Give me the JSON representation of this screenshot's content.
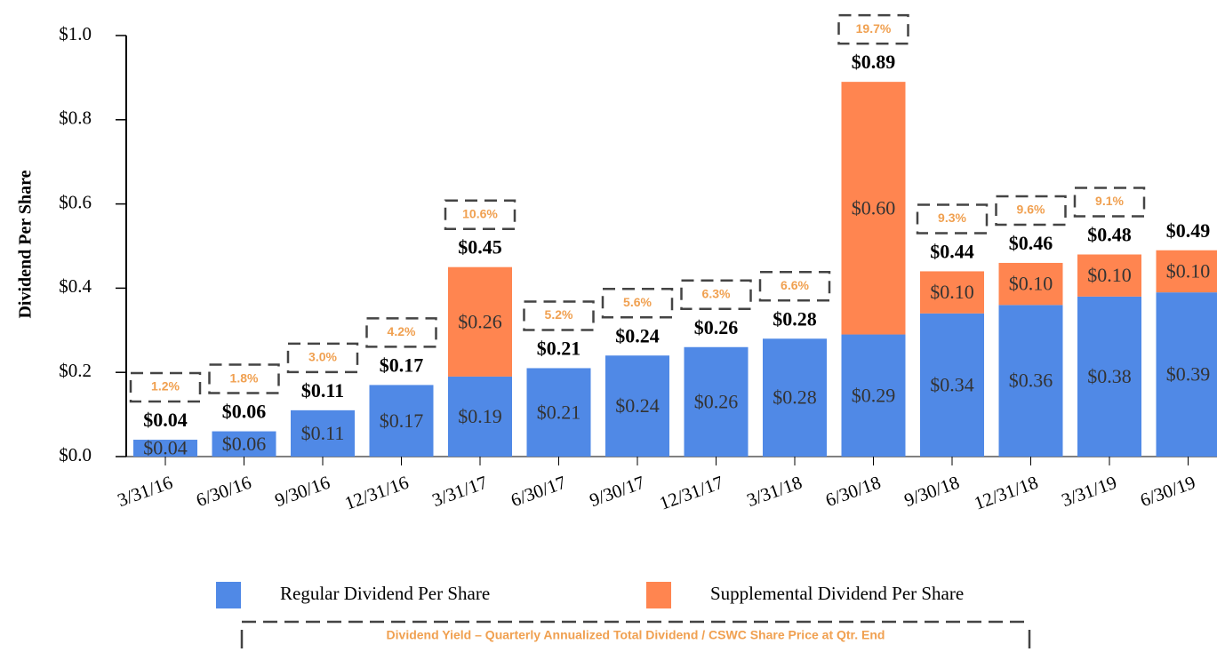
{
  "chart_data": {
    "type": "stacked_bar",
    "y_label": "Dividend Per Share",
    "categories": [
      "3/31/16",
      "6/30/16",
      "9/30/16",
      "12/31/16",
      "3/31/17",
      "6/30/17",
      "9/30/17",
      "12/31/17",
      "3/31/18",
      "6/30/18",
      "9/30/18",
      "12/31/18",
      "3/31/19",
      "6/30/19"
    ],
    "series": [
      {
        "name": "Regular Dividend Per Share",
        "color": "#5089e6",
        "values": [
          0.04,
          0.06,
          0.11,
          0.17,
          0.19,
          0.21,
          0.24,
          0.26,
          0.28,
          0.29,
          0.34,
          0.36,
          0.38,
          0.39
        ],
        "value_labels": [
          "$0.04",
          "$0.06",
          "$0.11",
          "$0.17",
          "$0.19",
          "$0.21",
          "$0.24",
          "$0.26",
          "$0.28",
          "$0.29",
          "$0.34",
          "$0.36",
          "$0.38",
          "$0.39"
        ]
      },
      {
        "name": "Supplemental Dividend Per Share",
        "color": "#ff8550",
        "values": [
          null,
          null,
          null,
          null,
          0.26,
          null,
          null,
          null,
          null,
          0.6,
          0.1,
          0.1,
          0.1,
          0.1
        ],
        "value_labels": [
          null,
          null,
          null,
          null,
          "$0.26",
          null,
          null,
          null,
          null,
          "$0.60",
          "$0.10",
          "$0.10",
          "$0.10",
          "$0.10"
        ]
      }
    ],
    "total_labels": [
      "$0.04",
      "$0.06",
      "$0.11",
      "$0.17",
      "$0.45",
      "$0.21",
      "$0.24",
      "$0.26",
      "$0.28",
      "$0.89",
      "$0.44",
      "$0.46",
      "$0.48",
      "$0.49"
    ],
    "yield_labels": [
      "1.2%",
      "1.8%",
      "3.0%",
      "4.2%",
      "10.6%",
      "5.2%",
      "5.6%",
      "6.3%",
      "6.6%",
      "19.7%",
      "9.3%",
      "9.6%",
      "9.1%",
      null
    ],
    "yield_note": "Dividend Yield – Quarterly Annualized Total Dividend / CSWC Share Price at Qtr. End",
    "ylim": [
      0,
      1.0
    ],
    "yticks": [
      {
        "value": 0,
        "label": "$0.0"
      },
      {
        "value": 0.2,
        "label": "$0.2"
      },
      {
        "value": 0.4,
        "label": "$0.4"
      },
      {
        "value": 0.6,
        "label": "$0.6"
      },
      {
        "value": 0.8,
        "label": "$0.8"
      },
      {
        "value": 1.0,
        "label": "$1.0"
      }
    ]
  }
}
